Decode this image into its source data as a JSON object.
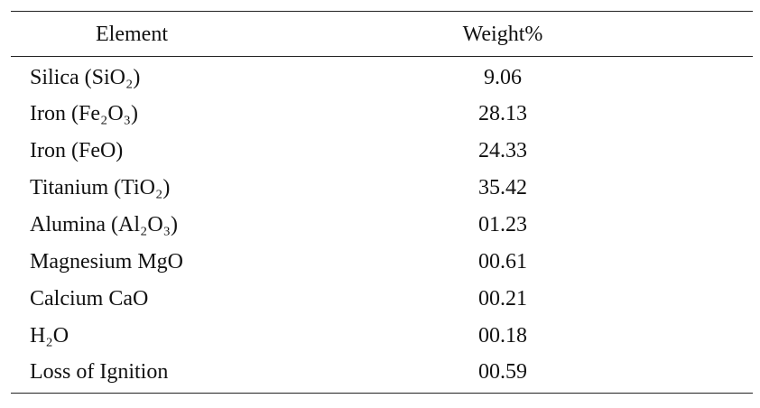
{
  "table": {
    "headers": [
      "Element",
      "Weight%"
    ],
    "rows": [
      {
        "element": "Silica (SiO₂)",
        "weight": "9.06"
      },
      {
        "element": "Iron (Fe₂O₃)",
        "weight": "28.13"
      },
      {
        "element": "Iron (FeO)",
        "weight": "24.33"
      },
      {
        "element": "Titanium (TiO₂)",
        "weight": "35.42"
      },
      {
        "element": "Alumina (Al₂O₃)",
        "weight": "01.23"
      },
      {
        "element": "Magnesium MgO",
        "weight": "00.61"
      },
      {
        "element": "Calcium CaO",
        "weight": "00.21"
      },
      {
        "element": "H₂O",
        "weight": "00.18"
      },
      {
        "element": "Loss of Ignition",
        "weight": "00.59"
      }
    ]
  }
}
